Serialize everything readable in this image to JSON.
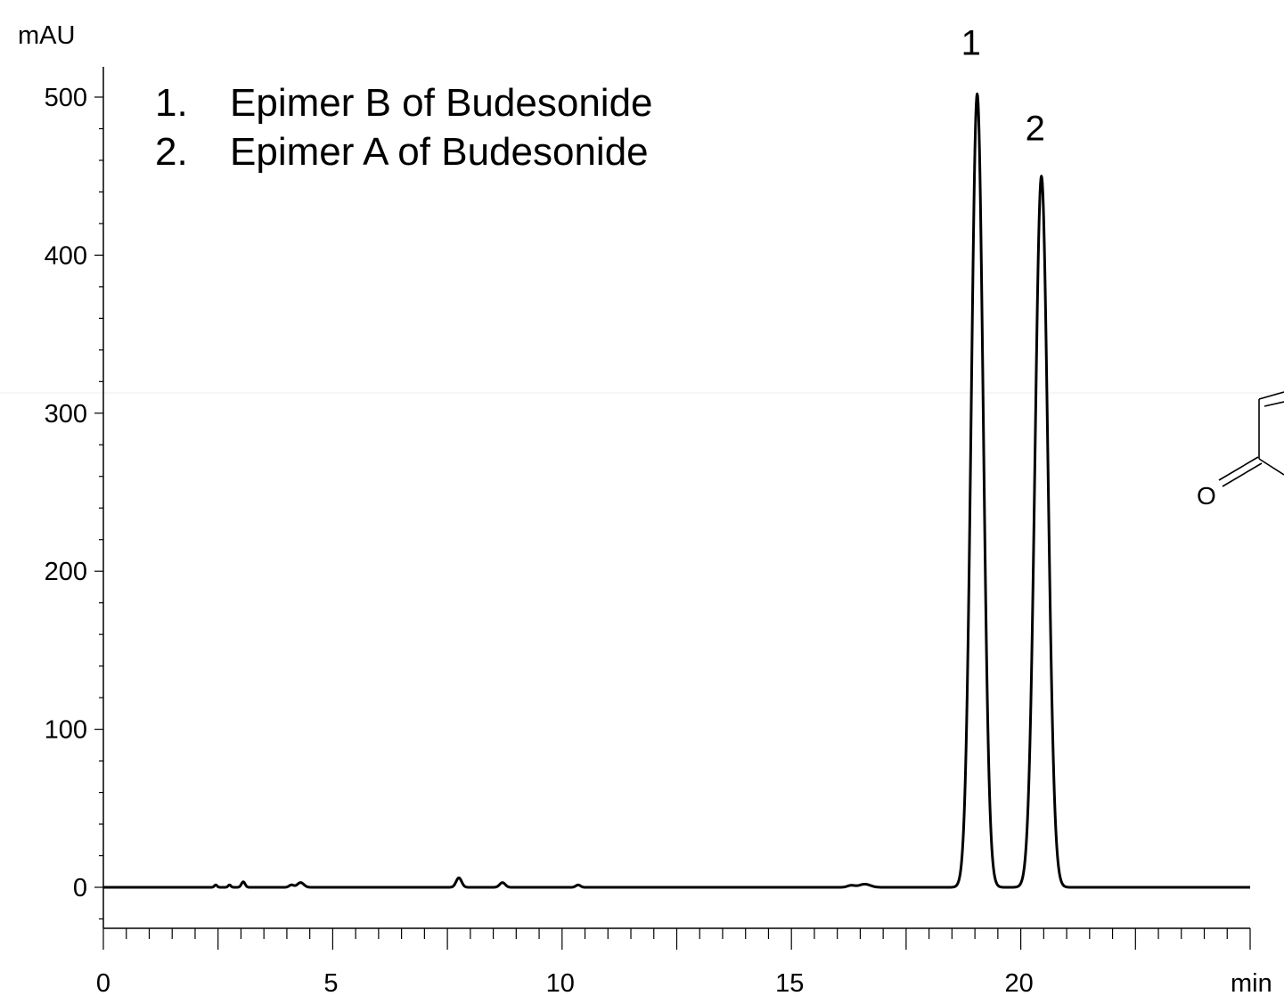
{
  "chart_data": {
    "type": "line",
    "title": "",
    "xlabel": "min",
    "ylabel": "mAU",
    "xlim": [
      0,
      25
    ],
    "ylim": [
      -25,
      510
    ],
    "x_ticks": [
      0,
      5,
      10,
      15,
      20
    ],
    "y_ticks": [
      0,
      100,
      200,
      300,
      400,
      500
    ],
    "grid": false,
    "legend_position": "top-left",
    "legend": [
      {
        "number": "1.",
        "text": "Epimer B of Budesonide"
      },
      {
        "number": "2.",
        "text": "Epimer A of Budesonide"
      }
    ],
    "peaks": [
      {
        "label": "1",
        "time": 19.05,
        "height": 502,
        "sigma": 0.13
      },
      {
        "label": "2",
        "time": 20.45,
        "height": 450,
        "sigma": 0.14
      }
    ],
    "minor_peaks": [
      {
        "time": 2.45,
        "height": 1.5,
        "sigma": 0.03
      },
      {
        "time": 2.75,
        "height": 1.5,
        "sigma": 0.03
      },
      {
        "time": 3.05,
        "height": 3.5,
        "sigma": 0.04
      },
      {
        "time": 4.1,
        "height": 1.5,
        "sigma": 0.05
      },
      {
        "time": 4.3,
        "height": 3.0,
        "sigma": 0.07
      },
      {
        "time": 7.75,
        "height": 6.0,
        "sigma": 0.06
      },
      {
        "time": 8.7,
        "height": 3.0,
        "sigma": 0.06
      },
      {
        "time": 10.35,
        "height": 1.5,
        "sigma": 0.05
      },
      {
        "time": 16.3,
        "height": 1.2,
        "sigma": 0.08
      },
      {
        "time": 16.6,
        "height": 2.0,
        "sigma": 0.12
      }
    ],
    "series": [
      {
        "x_start": 0,
        "x_end": 25,
        "baseline": 0,
        "color": "#000000"
      }
    ],
    "structure_fragment": {
      "atom_label": "O"
    }
  }
}
